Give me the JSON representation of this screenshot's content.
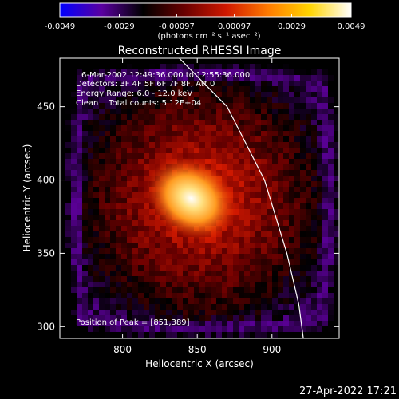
{
  "chart_data": {
    "type": "heatmap",
    "title": "Reconstructed RHESSI Image",
    "xlabel": "Heliocentric X (arcsec)",
    "ylabel": "Heliocentric Y (arcsec)",
    "xlim": [
      758,
      945
    ],
    "ylim": [
      292,
      483
    ],
    "x_ticks": [
      800,
      850,
      900
    ],
    "y_ticks": [
      300,
      350,
      400,
      450
    ],
    "colorbar": {
      "min": -0.0049,
      "max": 0.0049,
      "ticks": [
        "-0.0049",
        "-0.0029",
        "-0.00097",
        "0.00097",
        "0.0029",
        "0.0049"
      ],
      "unit_label": "(photons cm⁻² s⁻¹ asec⁻²)",
      "colors": [
        "#0000ff",
        "#5a00a0",
        "#000000",
        "#6a0000",
        "#d01800",
        "#ff7a00",
        "#ffd400",
        "#ffffff"
      ]
    },
    "annotations": [
      "6-Mar-2002 12:49:36.000 to 12:55:36.000",
      "Detectors: 3F 4F 5F 6F 7F 8F, Att 0",
      "Energy Range: 6.0 - 12.0 keV",
      "Clean    Total counts: 5.12E+04"
    ],
    "peak_label": "Position of Peak = [851,389]",
    "peak": [
      851,
      389
    ],
    "limb_curve": [
      [
        838,
        483
      ],
      [
        870,
        450
      ],
      [
        895,
        400
      ],
      [
        910,
        350
      ],
      [
        918,
        315
      ],
      [
        921,
        292
      ]
    ],
    "timestamp": "27-Apr-2022 17:21"
  }
}
